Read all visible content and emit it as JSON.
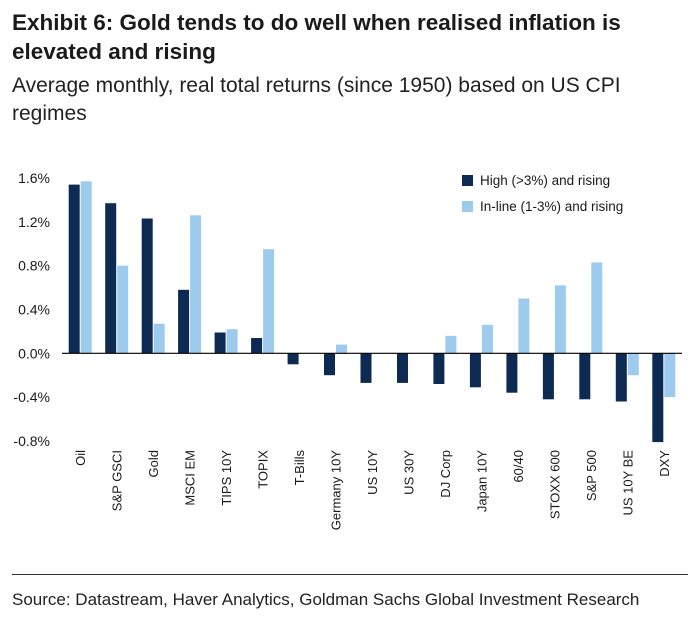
{
  "header": {
    "title": "Exhibit 6: Gold tends to do well when realised inflation is elevated and rising",
    "subtitle": "Average monthly, real total returns (since 1950) based on US CPI regimes"
  },
  "footer": {
    "source": "Source: Datastream, Haver Analytics, Goldman Sachs Global Investment Research"
  },
  "colors": {
    "high": "#0d2a52",
    "inline": "#9dcbee",
    "axis": "#000000",
    "text": "#1a1a1a"
  },
  "chart_data": {
    "type": "bar",
    "title": "",
    "xlabel": "",
    "ylabel": "",
    "ylim": [
      -0.8,
      1.6
    ],
    "yticks": [
      1.6,
      1.2,
      0.8,
      0.4,
      0.0,
      -0.4,
      -0.8
    ],
    "ytick_labels": [
      "1.6%",
      "1.2%",
      "0.8%",
      "0.4%",
      "0.0%",
      "-0.4%",
      "-0.8%"
    ],
    "legend_position": "top-right",
    "categories": [
      "Oil",
      "S&P GSCI",
      "Gold",
      "MSCI EM",
      "TIPS 10Y",
      "TOPIX",
      "T-Bills",
      "Germany 10Y",
      "US 10Y",
      "US 30Y",
      "DJ Corp",
      "Japan 10Y",
      "60/40",
      "STOXX 600",
      "S&P 500",
      "US 10Y BE",
      "DXY"
    ],
    "series": [
      {
        "name": "High (>3%) and rising",
        "color": "#0d2a52",
        "values": [
          1.54,
          1.37,
          1.23,
          0.58,
          0.19,
          0.14,
          -0.1,
          -0.2,
          -0.27,
          -0.27,
          -0.28,
          -0.31,
          -0.36,
          -0.42,
          -0.42,
          -0.44,
          -0.81
        ]
      },
      {
        "name": "In-line (1-3%) and rising",
        "color": "#9dcbee",
        "values": [
          1.57,
          0.8,
          0.27,
          1.26,
          0.22,
          0.95,
          0.0,
          0.08,
          0.0,
          0.0,
          0.16,
          0.26,
          0.5,
          0.62,
          0.83,
          -0.2,
          -0.4
        ]
      }
    ]
  }
}
